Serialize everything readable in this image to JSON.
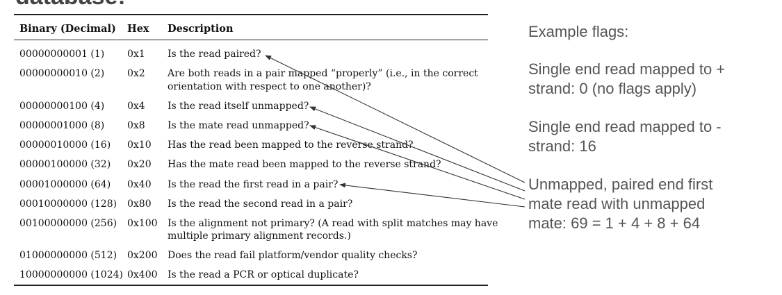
{
  "title_fragment": "database:",
  "table": {
    "headers": [
      "Binary (Decimal)",
      "Hex",
      "Description"
    ],
    "rows": [
      {
        "binary": "00000000001 (1)",
        "hex": "0x1",
        "desc": [
          "Is the read paired?"
        ]
      },
      {
        "binary": "00000000010 (2)",
        "hex": "0x2",
        "desc": [
          "Are both reads in a pair mapped “properly” (i.e., in the correct",
          "orientation with respect to one another)?"
        ]
      },
      {
        "binary": "00000000100 (4)",
        "hex": "0x4",
        "desc": [
          "Is the read itself unmapped?"
        ]
      },
      {
        "binary": "00000001000 (8)",
        "hex": "0x8",
        "desc": [
          "Is the mate read unmapped?"
        ]
      },
      {
        "binary": "00000010000 (16)",
        "hex": "0x10",
        "desc": [
          "Has the read been mapped to the reverse strand?"
        ]
      },
      {
        "binary": "00000100000 (32)",
        "hex": "0x20",
        "desc": [
          "Has the mate read been mapped to the reverse strand?"
        ]
      },
      {
        "binary": "00001000000 (64)",
        "hex": "0x40",
        "desc": [
          "Is the read the first read in a pair?"
        ]
      },
      {
        "binary": "00010000000 (128)",
        "hex": "0x80",
        "desc": [
          "Is the read the second read in a pair?"
        ]
      },
      {
        "binary": "00100000000 (256)",
        "hex": "0x100",
        "desc": [
          "Is the alignment not primary? (A read with split matches may have",
          "multiple primary alignment records.)"
        ]
      },
      {
        "binary": "01000000000 (512)",
        "hex": "0x200",
        "desc": [
          "Does the read fail platform/vendor quality checks?"
        ]
      },
      {
        "binary": "10000000000 (1024)",
        "hex": "0x400",
        "desc": [
          "Is the read a PCR or optical duplicate?"
        ]
      }
    ]
  },
  "examples": {
    "heading": "Example flags:",
    "ex1": [
      "Single end read mapped to +",
      "strand: 0 (no flags apply)"
    ],
    "ex2": [
      "Single end read mapped to -",
      "strand: 16"
    ],
    "ex3": [
      "Unmapped, paired end first",
      "mate read with unmapped",
      "mate: 69 = 1 + 4 + 8 + 64"
    ]
  },
  "colors": {
    "text": "#111111",
    "aside_text": "#555555",
    "rule": "#222222"
  }
}
